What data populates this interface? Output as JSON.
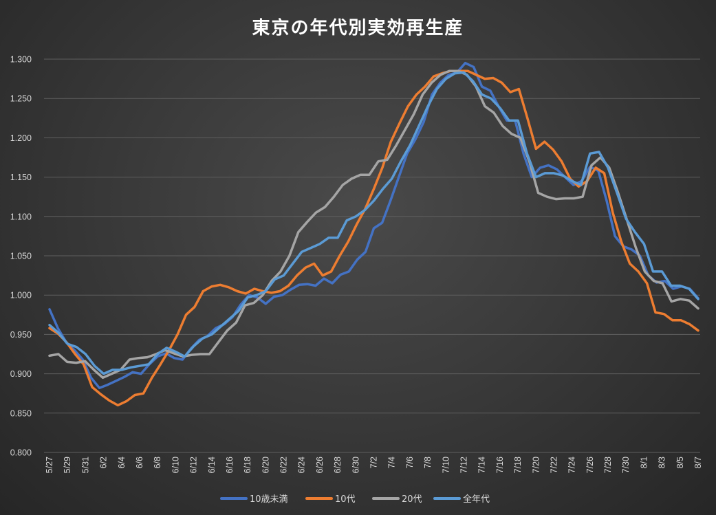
{
  "chart_data": {
    "type": "line",
    "title": "東京の年代別実効再生産",
    "xlabel": "",
    "ylabel": "",
    "ylim": [
      0.8,
      1.3
    ],
    "yticks": [
      "1.300",
      "1.250",
      "1.200",
      "1.150",
      "1.100",
      "1.050",
      "1.000",
      "0.950",
      "0.900",
      "0.850",
      "0.800"
    ],
    "grid": true,
    "legend_position": "bottom",
    "x_start": "5/27",
    "x_end": "8/7",
    "x_tick_labels": [
      "5/27",
      "5/29",
      "5/31",
      "6/2",
      "6/4",
      "6/6",
      "6/8",
      "6/10",
      "6/12",
      "6/14",
      "6/16",
      "6/18",
      "6/20",
      "6/22",
      "6/24",
      "6/26",
      "6/28",
      "6/30",
      "7/2",
      "7/4",
      "7/6",
      "7/8",
      "7/10",
      "7/12",
      "7/14",
      "7/16",
      "7/18",
      "7/20",
      "7/22",
      "7/24",
      "7/26",
      "7/28",
      "7/30",
      "8/1",
      "8/3",
      "8/5",
      "8/7"
    ],
    "series": [
      {
        "name": "10歳未満",
        "color": "#4472c4",
        "values": [
          0.982,
          0.958,
          0.94,
          0.93,
          0.918,
          0.895,
          0.882,
          0.886,
          0.891,
          0.896,
          0.902,
          0.9,
          0.912,
          0.922,
          0.926,
          0.92,
          0.918,
          0.932,
          0.943,
          0.948,
          0.958,
          0.963,
          0.972,
          0.988,
          1.0,
          0.997,
          0.989,
          0.998,
          1.0,
          1.007,
          1.013,
          1.014,
          1.012,
          1.021,
          1.015,
          1.026,
          1.03,
          1.045,
          1.055,
          1.085,
          1.092,
          1.12,
          1.15,
          1.18,
          1.198,
          1.22,
          1.255,
          1.27,
          1.28,
          1.283,
          1.295,
          1.29,
          1.265,
          1.26,
          1.24,
          1.222,
          1.222,
          1.18,
          1.15,
          1.162,
          1.165,
          1.16,
          1.15,
          1.14,
          1.145,
          1.163,
          1.158,
          1.12,
          1.075,
          1.062,
          1.058,
          1.05,
          1.025,
          1.016,
          1.018,
          1.008,
          1.011,
          1.008,
          0.996
        ]
      },
      {
        "name": "10代",
        "color": "#ed7d31",
        "values": [
          0.958,
          0.951,
          0.94,
          0.925,
          0.912,
          0.883,
          0.874,
          0.866,
          0.86,
          0.865,
          0.873,
          0.875,
          0.895,
          0.912,
          0.93,
          0.95,
          0.975,
          0.985,
          1.005,
          1.011,
          1.013,
          1.01,
          1.005,
          1.002,
          1.008,
          1.005,
          1.003,
          1.005,
          1.012,
          1.025,
          1.035,
          1.04,
          1.025,
          1.03,
          1.05,
          1.068,
          1.09,
          1.11,
          1.135,
          1.162,
          1.195,
          1.218,
          1.24,
          1.255,
          1.265,
          1.278,
          1.282,
          1.285,
          1.285,
          1.285,
          1.28,
          1.275,
          1.276,
          1.27,
          1.258,
          1.262,
          1.225,
          1.186,
          1.195,
          1.185,
          1.17,
          1.148,
          1.138,
          1.145,
          1.162,
          1.155,
          1.105,
          1.068,
          1.04,
          1.03,
          1.015,
          0.978,
          0.976,
          0.968,
          0.968,
          0.963,
          0.955
        ]
      },
      {
        "name": "20代",
        "color": "#a5a5a5",
        "values": [
          0.923,
          0.925,
          0.915,
          0.914,
          0.916,
          0.905,
          0.895,
          0.9,
          0.905,
          0.918,
          0.92,
          0.921,
          0.925,
          0.93,
          0.926,
          0.922,
          0.924,
          0.925,
          0.925,
          0.94,
          0.955,
          0.965,
          0.987,
          0.99,
          1.0,
          1.018,
          1.03,
          1.05,
          1.08,
          1.093,
          1.105,
          1.112,
          1.125,
          1.14,
          1.148,
          1.153,
          1.153,
          1.17,
          1.172,
          1.19,
          1.21,
          1.23,
          1.255,
          1.27,
          1.28,
          1.285,
          1.285,
          1.28,
          1.265,
          1.24,
          1.232,
          1.215,
          1.205,
          1.2,
          1.17,
          1.13,
          1.125,
          1.122,
          1.123,
          1.123,
          1.125,
          1.165,
          1.175,
          1.162,
          1.13,
          1.095,
          1.06,
          1.03,
          1.018,
          1.015,
          0.992,
          0.995,
          0.993,
          0.983
        ]
      },
      {
        "name": "全年代",
        "color": "#5b9bd5",
        "values": [
          0.962,
          0.952,
          0.938,
          0.934,
          0.925,
          0.91,
          0.9,
          0.905,
          0.905,
          0.908,
          0.91,
          0.912,
          0.925,
          0.933,
          0.928,
          0.922,
          0.935,
          0.945,
          0.95,
          0.96,
          0.97,
          0.98,
          0.997,
          1.0,
          1.005,
          1.02,
          1.025,
          1.04,
          1.055,
          1.06,
          1.065,
          1.073,
          1.073,
          1.095,
          1.1,
          1.108,
          1.12,
          1.135,
          1.148,
          1.17,
          1.19,
          1.215,
          1.24,
          1.262,
          1.275,
          1.282,
          1.283,
          1.272,
          1.255,
          1.25,
          1.238,
          1.222,
          1.222,
          1.18,
          1.15,
          1.155,
          1.155,
          1.152,
          1.145,
          1.14,
          1.18,
          1.182,
          1.162,
          1.13,
          1.097,
          1.08,
          1.065,
          1.03,
          1.03,
          1.012,
          1.012,
          1.008,
          0.995
        ]
      }
    ]
  }
}
